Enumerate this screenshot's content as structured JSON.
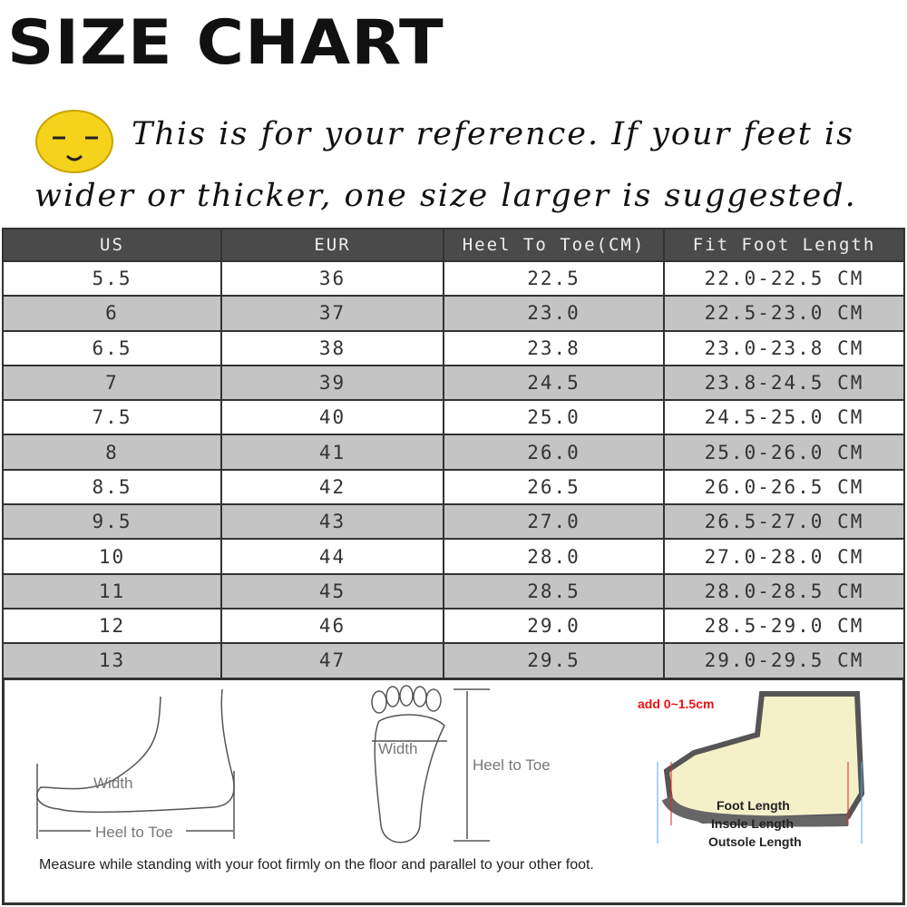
{
  "title": "SIZE CHART",
  "note_line1": "This is for your reference. If your feet is",
  "note_line2": "wider or thicker, one size larger is suggested.",
  "table": {
    "headers": [
      "US",
      "EUR",
      "Heel To Toe(CM)",
      "Fit Foot Length"
    ],
    "rows": [
      [
        "5.5",
        "36",
        "22.5",
        "22.0-22.5 CM"
      ],
      [
        "6",
        "37",
        "23.0",
        "22.5-23.0 CM"
      ],
      [
        "6.5",
        "38",
        "23.8",
        "23.0-23.8 CM"
      ],
      [
        "7",
        "39",
        "24.5",
        "23.8-24.5 CM"
      ],
      [
        "7.5",
        "40",
        "25.0",
        "24.5-25.0 CM"
      ],
      [
        "8",
        "41",
        "26.0",
        "25.0-26.0 CM"
      ],
      [
        "8.5",
        "42",
        "26.5",
        "26.0-26.5 CM"
      ],
      [
        "9.5",
        "43",
        "27.0",
        "26.5-27.0 CM"
      ],
      [
        "10",
        "44",
        "28.0",
        "27.0-28.0 CM"
      ],
      [
        "11",
        "45",
        "28.5",
        "28.0-28.5 CM"
      ],
      [
        "12",
        "46",
        "29.0",
        "28.5-29.0 CM"
      ],
      [
        "13",
        "47",
        "29.5",
        "29.0-29.5 CM"
      ]
    ]
  },
  "diagrams": {
    "side_width": "Width",
    "side_heel_to_toe": "Heel to Toe",
    "sole_width": "Width",
    "sole_heel_to_toe": "Heel to Toe",
    "add_note": "add 0~1.5cm",
    "foot_length": "Foot Length",
    "insole_length": "Insole Length",
    "outsole_length": "Outsole Length"
  },
  "measure_note": "Measure while standing with your foot firmly on the floor and parallel to your other foot.",
  "colors": {
    "header_bg": "#4a4a4a",
    "alt_row": "#c4c4c4",
    "smiley": "#f5d21c",
    "note_red": "#e11111"
  }
}
